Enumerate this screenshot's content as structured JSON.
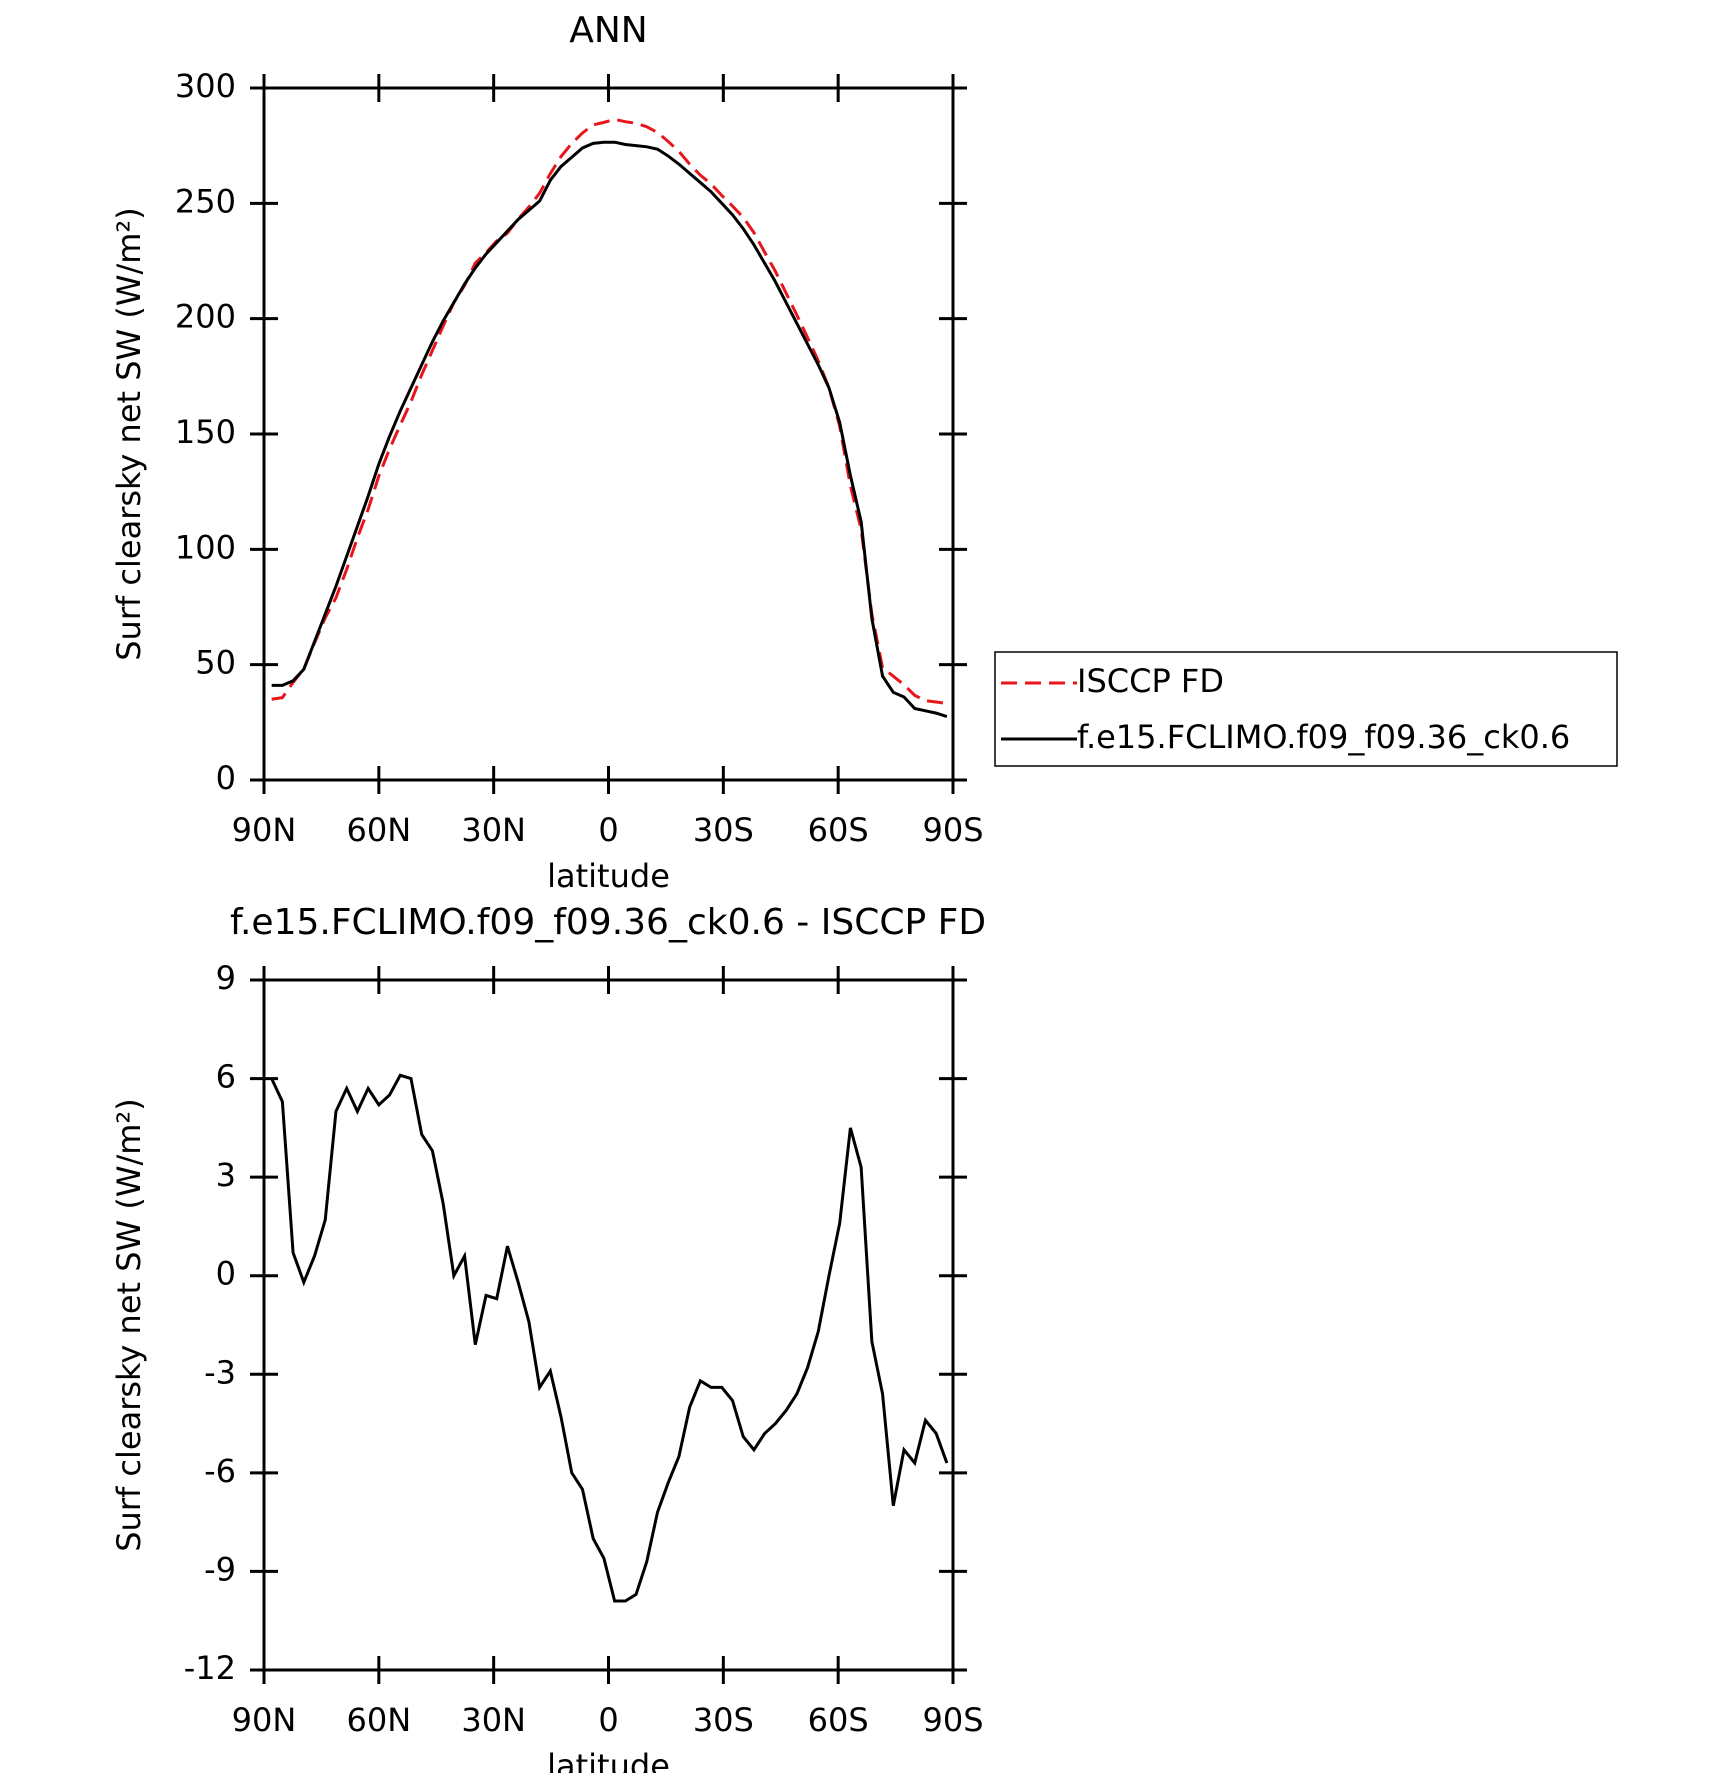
{
  "chart_data": [
    {
      "type": "line",
      "title": "ANN",
      "xlabel": "latitude",
      "ylabel": "Surf clearsky net SW (W/m²)",
      "x": [
        88.0,
        85.2,
        82.4,
        79.6,
        76.8,
        74.0,
        71.2,
        68.4,
        65.6,
        62.8,
        60.0,
        57.2,
        54.4,
        51.6,
        48.8,
        46.0,
        43.2,
        40.4,
        37.6,
        34.8,
        32.0,
        29.2,
        26.4,
        23.6,
        20.8,
        18.0,
        15.2,
        12.4,
        9.6,
        6.8,
        4.0,
        1.2,
        -1.6,
        -4.4,
        -7.2,
        -10.0,
        -12.8,
        -15.6,
        -18.4,
        -21.2,
        -24.0,
        -26.8,
        -29.6,
        -32.4,
        -35.2,
        -38.0,
        -40.8,
        -43.6,
        -46.4,
        -49.2,
        -52.0,
        -54.8,
        -57.6,
        -60.4,
        -63.2,
        -66.0,
        -68.8,
        -71.6,
        -74.4,
        -77.2,
        -80.0,
        -82.8,
        -85.6,
        -88.4
      ],
      "series": [
        {
          "name": "ISCCP FD",
          "color": "#e8161b",
          "dash": true,
          "values": [
            35,
            35.7,
            42.3,
            48.2,
            59.4,
            70.3,
            79,
            91.3,
            105,
            117.3,
            131.8,
            143.5,
            153.9,
            164,
            175.7,
            186.2,
            196.8,
            207,
            214.4,
            224.1,
            228.6,
            233.7,
            237.1,
            243.2,
            248.4,
            254.4,
            262.9,
            270.3,
            276,
            280.5,
            284,
            285.1,
            286.4,
            285.4,
            284.7,
            283.2,
            280.7,
            276.8,
            272.5,
            267,
            262.2,
            258.4,
            253.4,
            248.8,
            243.9,
            237.3,
            228.8,
            220.5,
            211.1,
            201.6,
            191.8,
            181.7,
            170,
            153.4,
            127.5,
            108.7,
            72,
            48.6,
            45,
            41.3,
            36.7,
            34.4,
            33.8,
            33.2
          ]
        },
        {
          "name": "f.e15.FCLIMO.f09_f09.36_ck0.6",
          "color": "#000000",
          "dash": false,
          "values": [
            41,
            41,
            43,
            48,
            60,
            72,
            84,
            97,
            110,
            123,
            137,
            149,
            160,
            170,
            180,
            190,
            199,
            207,
            215,
            222,
            228,
            233,
            238,
            243,
            247,
            251,
            260,
            266,
            270,
            274,
            276,
            276.5,
            276.5,
            275.5,
            275,
            274.5,
            273.5,
            270.5,
            267,
            263,
            259,
            255,
            250,
            245,
            239,
            232,
            224,
            216,
            207,
            198,
            189,
            180,
            170,
            155,
            132,
            112,
            70,
            45,
            38,
            36,
            31,
            30,
            29,
            27.5
          ]
        }
      ],
      "xlim": [
        90,
        -90
      ],
      "xticks": [
        {
          "value": 90,
          "label": "90N"
        },
        {
          "value": 60,
          "label": "60N"
        },
        {
          "value": 30,
          "label": "30N"
        },
        0,
        {
          "value": -30,
          "label": "30S"
        },
        {
          "value": -60,
          "label": "60S"
        },
        {
          "value": -90,
          "label": "90S"
        }
      ],
      "ylim": [
        0,
        300
      ],
      "yticks": [
        0,
        50,
        100,
        150,
        200,
        250,
        300
      ],
      "legend": "right"
    },
    {
      "type": "line",
      "title": "f.e15.FCLIMO.f09_f09.36_ck0.6 - ISCCP FD",
      "xlabel": "latitude",
      "ylabel": "Surf clearsky net SW (W/m²)",
      "x": [
        88.0,
        85.2,
        82.4,
        79.6,
        76.8,
        74.0,
        71.2,
        68.4,
        65.6,
        62.8,
        60.0,
        57.2,
        54.4,
        51.6,
        48.8,
        46.0,
        43.2,
        40.4,
        37.6,
        34.8,
        32.0,
        29.2,
        26.4,
        23.6,
        20.8,
        18.0,
        15.2,
        12.4,
        9.6,
        6.8,
        4.0,
        1.2,
        -1.6,
        -4.4,
        -7.2,
        -10.0,
        -12.8,
        -15.6,
        -18.4,
        -21.2,
        -24.0,
        -26.8,
        -29.6,
        -32.4,
        -35.2,
        -38.0,
        -40.8,
        -43.6,
        -46.4,
        -49.2,
        -52.0,
        -54.8,
        -57.6,
        -60.4,
        -63.2,
        -66.0,
        -68.8,
        -71.6,
        -74.4,
        -77.2,
        -80.0,
        -82.8,
        -85.6,
        -88.4
      ],
      "series": [
        {
          "color": "#000000",
          "dash": false,
          "values": [
            6.0,
            5.3,
            0.7,
            -0.2,
            0.6,
            1.7,
            5.0,
            5.7,
            5.0,
            5.7,
            5.2,
            5.5,
            6.1,
            6.0,
            4.3,
            3.8,
            2.2,
            0.0,
            0.6,
            -2.1,
            -0.6,
            -0.7,
            0.9,
            -0.2,
            -1.4,
            -3.4,
            -2.9,
            -4.3,
            -6.0,
            -6.5,
            -8.0,
            -8.6,
            -9.9,
            -9.9,
            -9.7,
            -8.7,
            -7.2,
            -6.3,
            -5.5,
            -4.0,
            -3.2,
            -3.4,
            -3.4,
            -3.8,
            -4.9,
            -5.3,
            -4.8,
            -4.5,
            -4.1,
            -3.6,
            -2.8,
            -1.7,
            0.0,
            1.6,
            4.5,
            3.3,
            -2.0,
            -3.6,
            -7.0,
            -5.3,
            -5.7,
            -4.4,
            -4.8,
            -5.7
          ]
        }
      ],
      "xlim": [
        90,
        -90
      ],
      "xticks": [
        {
          "value": 90,
          "label": "90N"
        },
        {
          "value": 60,
          "label": "60N"
        },
        {
          "value": 30,
          "label": "30N"
        },
        0,
        {
          "value": -30,
          "label": "30S"
        },
        {
          "value": -60,
          "label": "60S"
        },
        {
          "value": -90,
          "label": "90S"
        }
      ],
      "ylim": [
        -12,
        9
      ],
      "yticks": [
        -12,
        -9,
        -6,
        -3,
        0,
        3,
        6,
        9
      ]
    }
  ]
}
